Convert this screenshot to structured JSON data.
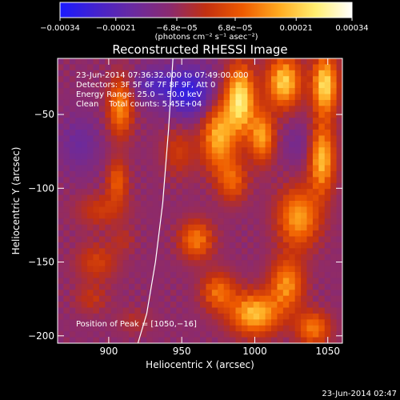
{
  "chart_data": {
    "type": "heatmap",
    "title": "Reconstructed RHESSI Image",
    "xlabel": "Heliocentric X (arcsec)",
    "ylabel": "Heliocentric Y (arcsec)",
    "xlim": [
      865,
      1060
    ],
    "ylim": [
      -205,
      -12
    ],
    "xticks": [
      900,
      950,
      1000,
      1050
    ],
    "yticks": [
      -50,
      -100,
      -150,
      -200
    ],
    "colorbar": {
      "vmin": -0.00034,
      "vmax": 0.00034,
      "tick_values": [
        -0.00034,
        -0.00021,
        -6.8e-05,
        6.8e-05,
        0.00021,
        0.00034
      ],
      "tick_labels": [
        "−0.00034",
        "−0.00021",
        "−6.8e−05",
        "6.8e−05",
        "0.00021",
        "0.00034"
      ],
      "unit_label": "(photons cm⁻² s⁻¹ asec⁻²)",
      "colormap": [
        "#1a1aff",
        "#4422cc",
        "#6a2aa0",
        "#8a2a70",
        "#c23010",
        "#ee5a00",
        "#ffaa20",
        "#ffee70",
        "#ffffff"
      ]
    },
    "annotations": {
      "time_range": "23-Jun-2014 07:36:32.000 to 07:49:00.000",
      "detectors": "Detectors: 3F 5F 6F 7F 8F 9F, Att 0",
      "energy_range": "Energy Range: 25.0 − 50.0 keV",
      "method": "Clean    Total counts: 5.45E+04",
      "peak": "Position of Peak = [1050,−16]"
    },
    "limb_curve": {
      "x": [
        944,
        941,
        937,
        932,
        926,
        920
      ],
      "y": [
        -12,
        -60,
        -110,
        -150,
        -185,
        -205
      ]
    },
    "sources": [
      {
        "x": 908,
        "y": -45,
        "value": 0.00022,
        "sx": 6,
        "sy": 14
      },
      {
        "x": 906,
        "y": -95,
        "value": 0.00016,
        "sx": 5,
        "sy": 10
      },
      {
        "x": 895,
        "y": -115,
        "value": 0.0001,
        "sx": 12,
        "sy": 8
      },
      {
        "x": 892,
        "y": -150,
        "value": 0.00011,
        "sx": 10,
        "sy": 9
      },
      {
        "x": 888,
        "y": -175,
        "value": 8e-05,
        "sx": 8,
        "sy": 7
      },
      {
        "x": 910,
        "y": -135,
        "value": 6e-05,
        "sx": 6,
        "sy": 6
      },
      {
        "x": 960,
        "y": -135,
        "value": 0.0002,
        "sx": 8,
        "sy": 9
      },
      {
        "x": 948,
        "y": -75,
        "value": 0.0001,
        "sx": 8,
        "sy": 12
      },
      {
        "x": 975,
        "y": -65,
        "value": 0.00026,
        "sx": 8,
        "sy": 16
      },
      {
        "x": 990,
        "y": -40,
        "value": 0.00034,
        "sx": 7,
        "sy": 16
      },
      {
        "x": 985,
        "y": -95,
        "value": 0.00016,
        "sx": 7,
        "sy": 10
      },
      {
        "x": 1005,
        "y": -65,
        "value": 0.00024,
        "sx": 6,
        "sy": 12
      },
      {
        "x": 1020,
        "y": -28,
        "value": 0.0003,
        "sx": 8,
        "sy": 12
      },
      {
        "x": 1048,
        "y": -30,
        "value": 0.00032,
        "sx": 6,
        "sy": 14
      },
      {
        "x": 1046,
        "y": -80,
        "value": 0.00028,
        "sx": 6,
        "sy": 16
      },
      {
        "x": 1030,
        "y": -120,
        "value": 0.00024,
        "sx": 10,
        "sy": 14
      },
      {
        "x": 1022,
        "y": -165,
        "value": 0.00022,
        "sx": 8,
        "sy": 12
      },
      {
        "x": 1000,
        "y": -185,
        "value": 0.00028,
        "sx": 12,
        "sy": 10
      },
      {
        "x": 975,
        "y": -170,
        "value": 0.00018,
        "sx": 8,
        "sy": 9
      },
      {
        "x": 1040,
        "y": -195,
        "value": 0.0002,
        "sx": 8,
        "sy": 8
      },
      {
        "x": 918,
        "y": -190,
        "value": 6e-05,
        "sx": 8,
        "sy": 6
      }
    ],
    "cold_regions": [
      {
        "x": 955,
        "y": -35,
        "value": -0.00021,
        "sx": 12,
        "sy": 12
      },
      {
        "x": 930,
        "y": -30,
        "value": -0.00012,
        "sx": 10,
        "sy": 8
      },
      {
        "x": 880,
        "y": -70,
        "value": -8e-05,
        "sx": 10,
        "sy": 14
      },
      {
        "x": 1030,
        "y": -70,
        "value": -6e-05,
        "sx": 8,
        "sy": 10
      }
    ]
  },
  "footer": {
    "timestamp": "23-Jun-2014 02:47"
  }
}
